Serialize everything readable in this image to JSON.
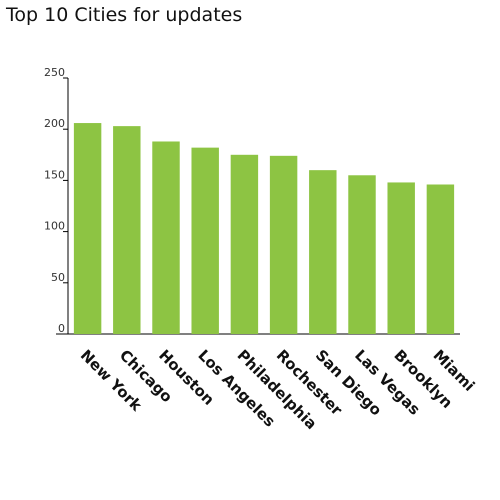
{
  "chart_data": {
    "type": "bar",
    "title": "Top 10 Cities for updates",
    "categories": [
      "New York",
      "Chicago",
      "Houston",
      "Los Angeles",
      "Philadelphia",
      "Rochester",
      "San Diego",
      "Las Vegas",
      "Brooklyn",
      "Miami"
    ],
    "values": [
      206,
      203,
      188,
      182,
      175,
      174,
      160,
      155,
      148,
      146
    ],
    "ylim": [
      0,
      250
    ],
    "yticks": [
      0,
      50,
      100,
      150,
      200,
      250
    ],
    "grid": false,
    "legend": "none",
    "bar_color": "#8dc443",
    "axis_color": "#000000"
  }
}
